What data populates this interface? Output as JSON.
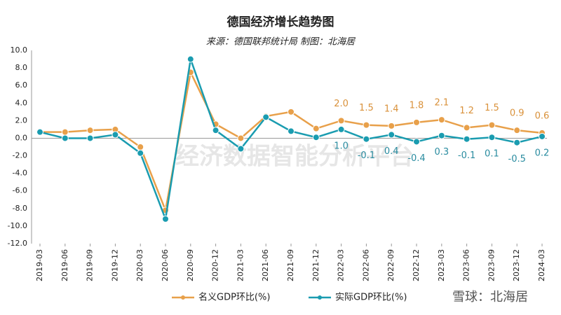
{
  "chart_data": {
    "type": "line",
    "title": "德国经济增长趋势图",
    "subtitle": "来源：德国联邦统计局 制图：北海居",
    "annotations": [
      "经济数据智能分析平台",
      "雪球：北海居"
    ],
    "categories": [
      "2019-03",
      "2019-06",
      "2019-09",
      "2019-12",
      "2020-03",
      "2020-06",
      "2020-09",
      "2020-12",
      "2021-03",
      "2021-06",
      "2021-09",
      "2021-12",
      "2022-03",
      "2022-06",
      "2022-09",
      "2022-12",
      "2023-03",
      "2023-06",
      "2023-09",
      "2023-12",
      "2024-03"
    ],
    "series": [
      {
        "name": "名义GDP环比(%)",
        "color": "#e8a04a",
        "label_color": "#d9913a",
        "values": [
          0.7,
          0.7,
          0.9,
          1.0,
          -1.0,
          -8.2,
          7.5,
          1.6,
          0.0,
          2.5,
          3.0,
          1.1,
          2.0,
          1.5,
          1.4,
          1.8,
          2.1,
          1.2,
          1.5,
          0.9,
          0.6
        ],
        "value_labels": [
          null,
          null,
          null,
          null,
          null,
          null,
          null,
          null,
          null,
          null,
          null,
          null,
          "2.0",
          "1.5",
          "1.4",
          "1.8",
          "2.1",
          "1.2",
          "1.5",
          "0.9",
          "0.6"
        ]
      },
      {
        "name": "实际GDP环比(%)",
        "color": "#1a9cb0",
        "label_color": "#2a8ca0",
        "values": [
          0.7,
          0.0,
          0.0,
          0.4,
          -1.7,
          -9.2,
          9.0,
          0.9,
          -1.2,
          2.4,
          0.8,
          0.1,
          1.0,
          -0.1,
          0.4,
          -0.4,
          0.3,
          -0.1,
          0.1,
          -0.5,
          0.2
        ],
        "value_labels": [
          null,
          null,
          null,
          null,
          null,
          null,
          null,
          null,
          null,
          null,
          null,
          null,
          "1.0",
          "-0.1",
          "0.4",
          "-0.4",
          "0.3",
          "-0.1",
          "0.1",
          "-0.5",
          "0.2"
        ]
      }
    ],
    "ylim": [
      -12,
      10
    ],
    "yticks": [
      {
        "value": 10,
        "label": "10.0"
      },
      {
        "value": 8,
        "label": "8.0"
      },
      {
        "value": 6,
        "label": "6.0"
      },
      {
        "value": 4,
        "label": "4.0"
      },
      {
        "value": 2,
        "label": "2.0"
      },
      {
        "value": 0,
        "label": "0.0"
      },
      {
        "value": -2,
        "label": "-2.0"
      },
      {
        "value": -4,
        "label": "-4.0"
      },
      {
        "value": -6,
        "label": "-6.0"
      },
      {
        "value": -8,
        "label": "-8.0"
      },
      {
        "value": -10,
        "label": "-10.0"
      },
      {
        "value": -12,
        "label": "-12.0"
      }
    ],
    "grid": false
  }
}
